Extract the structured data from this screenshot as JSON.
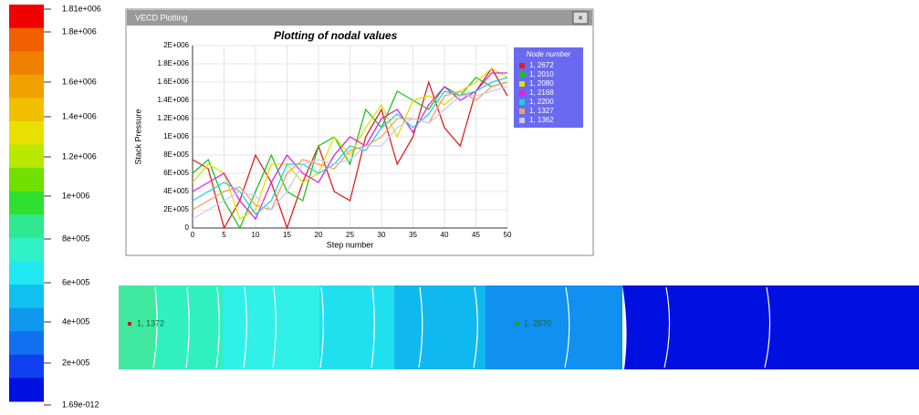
{
  "colorbar": {
    "labels": [
      "1.81e+006",
      "1.8e+006",
      "1.6e+006",
      "1.4e+006",
      "1.2e+006",
      "1e+006",
      "8e+005",
      "6e+005",
      "4e+005",
      "2e+005",
      "1.69e-012"
    ]
  },
  "window": {
    "title": "VECD Plotting"
  },
  "contour": {
    "labels": [
      "1, 1372",
      "1, 2670"
    ]
  },
  "chart_data": {
    "type": "line",
    "title": "Plotting of nodal values",
    "x_label": "Step number",
    "y_label": "Stack Pressure",
    "x": [
      0,
      2.5,
      5,
      7.5,
      10,
      12.5,
      15,
      17.5,
      20,
      22.5,
      25,
      27.5,
      30,
      32.5,
      35,
      37.5,
      40,
      42.5,
      45,
      47.5,
      50
    ],
    "xlim": [
      0,
      50
    ],
    "xticks": [
      0,
      5,
      10,
      15,
      20,
      25,
      30,
      35,
      40,
      45,
      50
    ],
    "ylim": [
      0,
      2000000
    ],
    "yticks": [
      0,
      {
        "value": 200000,
        "label": "2E+005"
      },
      {
        "value": 400000,
        "label": "4E+005"
      },
      {
        "value": 600000,
        "label": "6E+005"
      },
      {
        "value": 800000,
        "label": "8E+005"
      },
      {
        "value": 1000000,
        "label": "1E+006"
      },
      {
        "value": 1200000,
        "label": "1.2E+006"
      },
      {
        "value": 1400000,
        "label": "1.4E+006"
      },
      {
        "value": 1600000,
        "label": "1.6E+006"
      },
      {
        "value": 1800000,
        "label": "1.8E+006"
      },
      {
        "value": 2000000,
        "label": "2E+006"
      }
    ],
    "grid": true,
    "legend_title": "Node number",
    "series": [
      {
        "name": "1, 2672",
        "color": "#e02020",
        "values": [
          750000,
          650000,
          0,
          300000,
          800000,
          500000,
          0,
          500000,
          900000,
          400000,
          300000,
          1000000,
          1300000,
          700000,
          1000000,
          1600000,
          1100000,
          900000,
          1500000,
          1750000,
          1450000
        ]
      },
      {
        "name": "1, 2010",
        "color": "#20c020",
        "values": [
          600000,
          750000,
          300000,
          0,
          400000,
          800000,
          400000,
          300000,
          900000,
          1000000,
          700000,
          1300000,
          1100000,
          1500000,
          1400000,
          1300000,
          1550000,
          1450000,
          1650000,
          1550000,
          1600000
        ]
      },
      {
        "name": "1, 2080",
        "color": "#e0e000",
        "values": [
          500000,
          700000,
          600000,
          100000,
          200000,
          700000,
          700000,
          500000,
          600000,
          1000000,
          800000,
          1100000,
          1350000,
          1000000,
          1400000,
          1450000,
          1350000,
          1500000,
          1600000,
          1750000,
          1650000
        ]
      },
      {
        "name": "1, 2168",
        "color": "#e020e0",
        "values": [
          400000,
          500000,
          600000,
          300000,
          100000,
          500000,
          800000,
          600000,
          500000,
          800000,
          1000000,
          900000,
          1200000,
          1300000,
          1050000,
          1350000,
          1550000,
          1400000,
          1500000,
          1700000,
          1700000
        ]
      },
      {
        "name": "1, 2200",
        "color": "#20d0e0",
        "values": [
          300000,
          400000,
          500000,
          400000,
          150000,
          300000,
          700000,
          700000,
          600000,
          700000,
          900000,
          850000,
          1100000,
          1250000,
          1100000,
          1250000,
          1500000,
          1450000,
          1500000,
          1600000,
          1650000
        ]
      },
      {
        "name": "1, 1327",
        "color": "#f0a060",
        "values": [
          200000,
          300000,
          400000,
          450000,
          250000,
          200000,
          600000,
          750000,
          700000,
          650000,
          850000,
          900000,
          1000000,
          1200000,
          1200000,
          1150000,
          1450000,
          1500000,
          1400000,
          1550000,
          1600000
        ]
      },
      {
        "name": "1, 1362",
        "color": "#c8c8ff",
        "values": [
          100000,
          200000,
          300000,
          400000,
          350000,
          200000,
          400000,
          700000,
          750000,
          700000,
          750000,
          900000,
          900000,
          1100000,
          1200000,
          1150000,
          1300000,
          1450000,
          1450000,
          1500000,
          1550000
        ]
      }
    ]
  }
}
